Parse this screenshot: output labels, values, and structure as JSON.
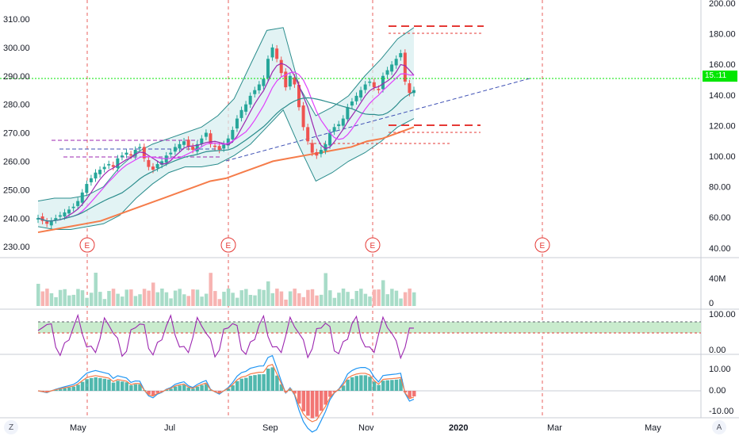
{
  "chart_data": {
    "type": "candlestick",
    "price_axis_left": {
      "ticks": [
        "310.00",
        "300.00",
        "290.00",
        "280.00",
        "270.00",
        "260.00",
        "250.00",
        "240.00",
        "230.00"
      ],
      "ylim": [
        228,
        313
      ]
    },
    "price_axis_right": {
      "ticks": [
        "200.00",
        "180.00",
        "160.00",
        "140.00",
        "120.00",
        "100.00",
        "80.00",
        "60.00",
        "40.00"
      ]
    },
    "x_axis": {
      "ticks": [
        "May",
        "Jul",
        "Sep",
        "Nov",
        "2020",
        "Mar",
        "May"
      ]
    },
    "current_price": {
      "value": 289.0,
      "label": "15.:11",
      "color": "#00e600"
    },
    "earnings_markers": [
      "E",
      "E",
      "E",
      "E"
    ],
    "candles": {
      "note_series": "approximate close path",
      "close": [
        240,
        239,
        238,
        239,
        240,
        241,
        242,
        243,
        244,
        246,
        249,
        252,
        254,
        256,
        257,
        258,
        259,
        258,
        261,
        262,
        263,
        262,
        264,
        265,
        261,
        258,
        257,
        259,
        260,
        262,
        263,
        265,
        266,
        267,
        265,
        264,
        266,
        268,
        270,
        266,
        265,
        264,
        266,
        268,
        271,
        275,
        278,
        280,
        283,
        285,
        287,
        289,
        296,
        300,
        296,
        291,
        286,
        290,
        287,
        279,
        272,
        267,
        263,
        262,
        264,
        266,
        270,
        272,
        273,
        275,
        279,
        281,
        283,
        285,
        287,
        288,
        286,
        285,
        290,
        292,
        294,
        296,
        298,
        288,
        284,
        285
      ]
    },
    "indicators": {
      "ema200": [
        235,
        236,
        237,
        238,
        239,
        241,
        243,
        245,
        247,
        249,
        251,
        253,
        254,
        256,
        258,
        260,
        261,
        262,
        263,
        264,
        265,
        267,
        268,
        270,
        272
      ],
      "bollinger_upper": [
        246,
        247,
        247,
        248,
        251,
        258,
        263,
        266,
        268,
        270,
        272,
        276,
        282,
        294,
        306,
        307,
        286,
        276,
        279,
        283,
        290,
        296,
        303,
        307
      ],
      "bollinger_lower": [
        237,
        236,
        236,
        237,
        238,
        241,
        247,
        252,
        256,
        258,
        258,
        259,
        262,
        266,
        272,
        278,
        265,
        253,
        256,
        260,
        263,
        267,
        272,
        275
      ]
    },
    "volume": {
      "ticks": [
        "40M",
        "0"
      ]
    },
    "stochastic": {
      "ticks": [
        "100.00",
        "0.00"
      ],
      "band": [
        80,
        20
      ]
    },
    "macd": {
      "ticks": [
        "10.00",
        "0.00",
        "-10.00"
      ]
    }
  },
  "toolbar": {
    "left_btn": "Z",
    "right_btn": "A"
  }
}
